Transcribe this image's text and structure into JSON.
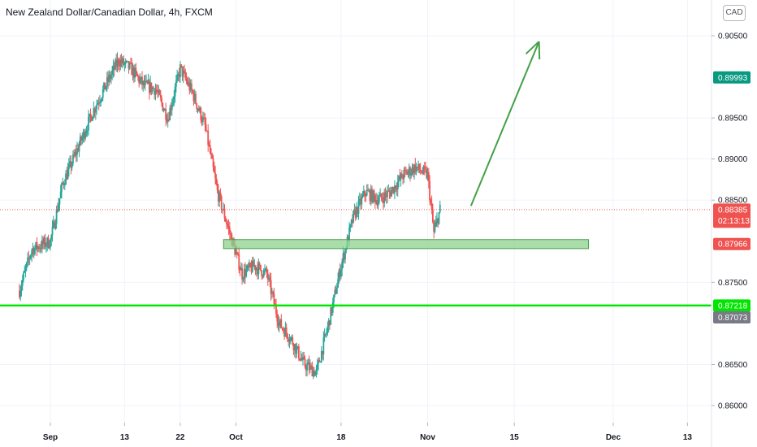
{
  "header": {
    "title": "New Zealand Dollar/Canadian Dollar, 4h, FXCM",
    "currency": "CAD"
  },
  "colors": {
    "up": "#26a69a",
    "down": "#ef5350",
    "support_line": "#00e600",
    "zone_fill": "#8fd18f",
    "zone_stroke": "#43a047",
    "arrow": "#43a047",
    "grid": "#f0f3fa",
    "current_tag": "#ef5350",
    "green_tag": "#089981",
    "gray_tag": "#787b86"
  },
  "chart_data": {
    "type": "candlestick",
    "title": "New Zealand Dollar/Canadian Dollar, 4h, FXCM",
    "price_axis": {
      "ticks": [
        "0.90500",
        "0.89500",
        "0.89000",
        "0.88500",
        "0.87500",
        "0.86500",
        "0.86000"
      ],
      "range": [
        0.8585,
        0.9075
      ]
    },
    "time_axis": {
      "ticks": [
        "Sep",
        "13",
        "22",
        "Oct",
        "18",
        "Nov",
        "15",
        "Dec",
        "13"
      ],
      "dates": [
        "2021-09-01",
        "2021-09-13",
        "2021-09-22",
        "2021-10-01",
        "2021-10-18",
        "2021-11-01",
        "2021-11-15",
        "2021-12-01",
        "2021-12-13"
      ]
    },
    "price_path": [
      [
        "2021-08-27",
        0.874
      ],
      [
        "2021-08-29",
        0.879
      ],
      [
        "2021-09-01",
        0.88
      ],
      [
        "2021-09-03",
        0.887
      ],
      [
        "2021-09-05",
        0.8905
      ],
      [
        "2021-09-08",
        0.896
      ],
      [
        "2021-09-10",
        0.899
      ],
      [
        "2021-09-12",
        0.902
      ],
      [
        "2021-09-14",
        0.901
      ],
      [
        "2021-09-16",
        0.899
      ],
      [
        "2021-09-18",
        0.8985
      ],
      [
        "2021-09-20",
        0.895
      ],
      [
        "2021-09-22",
        0.901
      ],
      [
        "2021-09-24",
        0.898
      ],
      [
        "2021-09-26",
        0.894
      ],
      [
        "2021-09-28",
        0.886
      ],
      [
        "2021-09-30",
        0.881
      ],
      [
        "2021-10-02",
        0.876
      ],
      [
        "2021-10-04",
        0.877
      ],
      [
        "2021-10-06",
        0.876
      ],
      [
        "2021-10-08",
        0.87
      ],
      [
        "2021-10-10",
        0.868
      ],
      [
        "2021-10-12",
        0.865
      ],
      [
        "2021-10-14",
        0.864
      ],
      [
        "2021-10-16",
        0.87
      ],
      [
        "2021-10-18",
        0.877
      ],
      [
        "2021-10-20",
        0.883
      ],
      [
        "2021-10-22",
        0.886
      ],
      [
        "2021-10-24",
        0.885
      ],
      [
        "2021-10-26",
        0.886
      ],
      [
        "2021-10-28",
        0.888
      ],
      [
        "2021-10-30",
        0.889
      ],
      [
        "2021-11-01",
        0.888
      ],
      [
        "2021-11-02",
        0.881
      ],
      [
        "2021-11-03",
        0.88385
      ]
    ],
    "current_price": "0.88385",
    "countdown": "02:13:13",
    "price_labels": [
      {
        "price": "0.89993",
        "style": "green",
        "value": 0.89993
      },
      {
        "price": "0.88385",
        "style": "current",
        "value": 0.88385
      },
      {
        "price": "0.87966",
        "style": "red",
        "value": 0.87966
      },
      {
        "price": "0.87218",
        "style": "support",
        "value": 0.87218
      },
      {
        "price": "0.87073",
        "style": "gray",
        "value": 0.87073
      }
    ],
    "support_level": 0.87218,
    "support_zone": {
      "from_date": "2021-09-29",
      "to_date": "2021-11-27",
      "low": 0.8791,
      "high": 0.8802
    },
    "projection_arrow": {
      "from": [
        "2021-11-08",
        0.8843
      ],
      "to": [
        "2021-11-19",
        0.9043
      ]
    }
  }
}
